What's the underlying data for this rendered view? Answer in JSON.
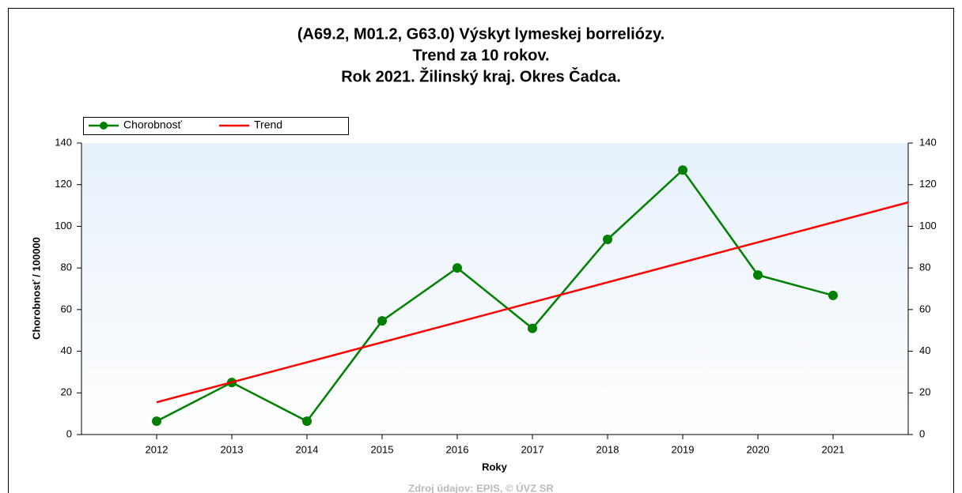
{
  "chart_data": {
    "type": "line",
    "title": [
      "(A69.2, M01.2, G63.0) Výskyt lymeskej borreliózy.",
      "Trend za 10 rokov.",
      "Rok 2021. Žilinský kraj. Okres Čadca."
    ],
    "xlabel": "Roky",
    "ylabel": "Chorobnosť / 100000",
    "source": "Zdroj údajov: EPIS, © ÚVZ SR",
    "x": [
      2012,
      2013,
      2014,
      2015,
      2016,
      2017,
      2018,
      2019,
      2020,
      2021
    ],
    "series": [
      {
        "name": "Chorobnosť",
        "color": "#008000",
        "values": [
          6.4,
          25,
          6.4,
          54.6,
          80,
          51,
          93.7,
          127,
          76.6,
          66.8
        ]
      },
      {
        "name": "Trend",
        "color": "#ff0000",
        "x": [
          2012,
          2022
        ],
        "values": [
          15.5,
          111.5
        ]
      }
    ],
    "xlim": [
      2011,
      2022
    ],
    "xticks": [
      2012,
      2013,
      2014,
      2015,
      2016,
      2017,
      2018,
      2019,
      2020,
      2021
    ],
    "ylim": [
      0,
      140
    ],
    "yticks": [
      0,
      20,
      40,
      60,
      80,
      100,
      120,
      140
    ],
    "legend": "top-left"
  }
}
